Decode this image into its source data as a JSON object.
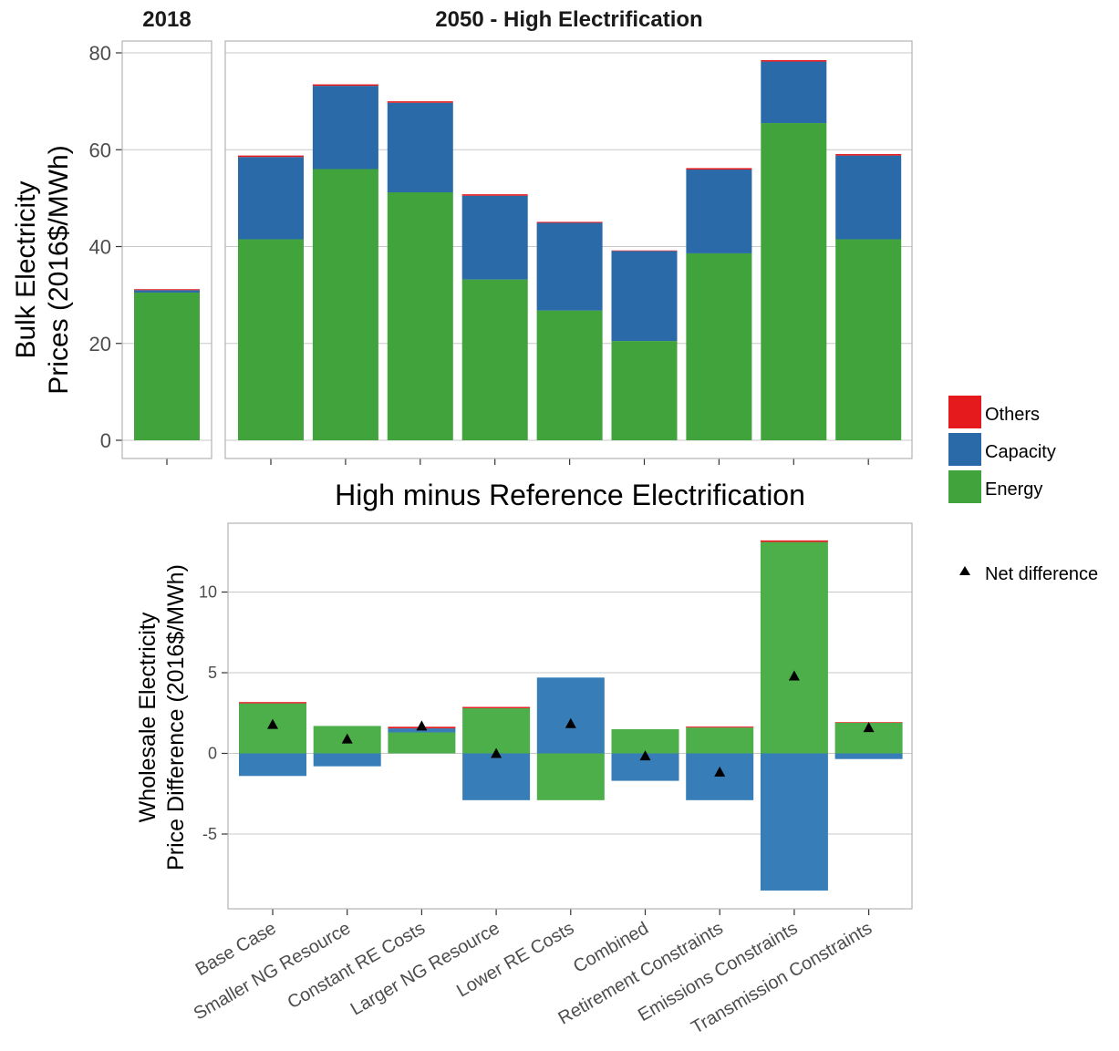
{
  "colors": {
    "Others": "#e41a1c",
    "Capacity_top": "#2b6aa8",
    "Capacity_bottom": "#377eb8",
    "Energy_top": "#41a33b",
    "Energy_bottom": "#4daf4a",
    "grid": "#c8c8c8",
    "panel_border": "#b3b3b3"
  },
  "chart_data": [
    {
      "type": "bar",
      "stacked": true,
      "facets": [
        "2018",
        "2050 - High Electrification"
      ],
      "ylabel_lines": [
        "Bulk Electricity",
        "Prices (2016$/MWh)"
      ],
      "ylim": [
        0,
        80
      ],
      "yticks": [
        0,
        20,
        40,
        60,
        80
      ],
      "grid": true,
      "series_order": [
        "Energy",
        "Capacity",
        "Others"
      ],
      "facet_2018": [
        {
          "category": "2018",
          "Energy": 30.5,
          "Capacity": 0.5,
          "Others": 0.2
        }
      ],
      "facet_2050": [
        {
          "category": "Base Case",
          "Energy": 41.5,
          "Capacity": 17.0,
          "Others": 0.3
        },
        {
          "category": "Smaller NG Resource",
          "Energy": 56.0,
          "Capacity": 17.2,
          "Others": 0.3
        },
        {
          "category": "Constant RE Costs",
          "Energy": 51.2,
          "Capacity": 18.5,
          "Others": 0.3
        },
        {
          "category": "Larger NG Resource",
          "Energy": 33.2,
          "Capacity": 17.3,
          "Others": 0.3
        },
        {
          "category": "Lower RE Costs",
          "Energy": 26.8,
          "Capacity": 18.1,
          "Others": 0.2
        },
        {
          "category": "Combined",
          "Energy": 20.5,
          "Capacity": 18.6,
          "Others": 0.1
        },
        {
          "category": "Retirement Constraints",
          "Energy": 38.6,
          "Capacity": 17.3,
          "Others": 0.3
        },
        {
          "category": "Emissions Constraints",
          "Energy": 65.5,
          "Capacity": 12.7,
          "Others": 0.3
        },
        {
          "category": "Transmission Constraints",
          "Energy": 41.5,
          "Capacity": 17.3,
          "Others": 0.3
        }
      ]
    },
    {
      "type": "bar",
      "stacked": true,
      "title": "High minus Reference Electrification",
      "ylabel_lines": [
        "Wholesale Electricity",
        "Price Difference (2016$/MWh)"
      ],
      "ylim": [
        -9.5,
        13.8
      ],
      "yticks": [
        -5,
        0,
        5,
        10
      ],
      "grid": true,
      "categories": [
        "Base Case",
        "Smaller NG Resource",
        "Constant RE Costs",
        "Larger NG Resource",
        "Lower RE Costs",
        "Combined",
        "Retirement Constraints",
        "Emissions Constraints",
        "Transmission Constraints"
      ],
      "series": [
        {
          "name": "Energy",
          "values": [
            3.1,
            1.7,
            1.3,
            2.8,
            -2.9,
            1.5,
            1.6,
            13.1,
            1.9
          ]
        },
        {
          "name": "Capacity",
          "values": [
            -1.4,
            -0.8,
            0.25,
            -2.9,
            4.7,
            -1.7,
            -2.9,
            -8.5,
            -0.35
          ]
        },
        {
          "name": "Others",
          "values": [
            0.08,
            0.0,
            0.1,
            0.08,
            0.0,
            0.0,
            0.06,
            0.1,
            0.04
          ]
        }
      ],
      "net_difference": [
        1.8,
        0.9,
        1.7,
        0.0,
        1.85,
        -0.15,
        -1.15,
        4.8,
        1.6
      ]
    }
  ],
  "legend": {
    "placement": "right",
    "items": [
      {
        "label": "Others",
        "color_key": "Others"
      },
      {
        "label": "Capacity",
        "color_key": "Capacity_top"
      },
      {
        "label": "Energy",
        "color_key": "Energy_top"
      }
    ],
    "net_label": "Net difference",
    "net_symbol": "triangle-marker"
  }
}
